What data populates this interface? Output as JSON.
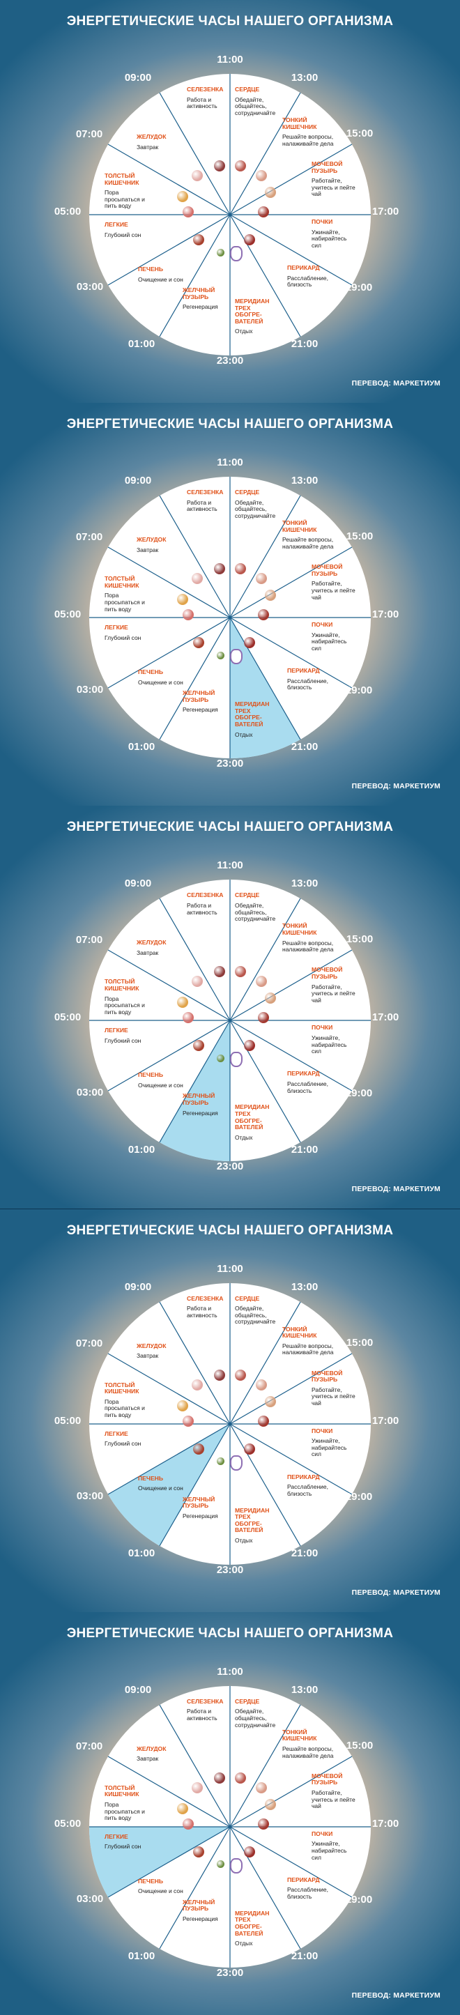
{
  "title": "ЭНЕРГЕТИЧЕСКИЕ ЧАСЫ НАШЕГО ОРГАНИЗМА",
  "credit": "ПЕРЕВОД: МАРКЕТИУМ",
  "hours": [
    "11:00",
    "13:00",
    "15:00",
    "17:00",
    "19:00",
    "21:00",
    "23:00",
    "01:00",
    "03:00",
    "05:00",
    "07:00",
    "09:00"
  ],
  "sections": [
    {
      "organ": "СЕРДЦЕ",
      "text": "Обедайте, общайтесь, сотрудничайте",
      "icon": "heart-icon",
      "color": "#b9574c"
    },
    {
      "organ": "ТОНКИЙ КИШЕЧНИК",
      "text": "Решайте вопросы, налаживайте дела",
      "icon": "small-intestine-icon",
      "color": "#d89a86"
    },
    {
      "organ": "МОЧЕВОЙ ПУЗЫРЬ",
      "text": "Работайте, учитесь и пейте чай",
      "icon": "bladder-icon",
      "color": "#d7a07c"
    },
    {
      "organ": "ПОЧКИ",
      "text": "Ужинайте, набирайтесь сил",
      "icon": "kidneys-icon",
      "color": "#a3382f"
    },
    {
      "organ": "ПЕРИКАРД",
      "text": "Расслабление, близость",
      "icon": "pericardium-icon",
      "color": "#9c2f2a"
    },
    {
      "organ": "МЕРИДИАН ТРЕХ ОБОГРЕ-ВАТЕЛЕЙ",
      "text": "Отдых",
      "icon": "triple-warmer-icon",
      "color": "#8e6fb3"
    },
    {
      "organ": "ЖЕЛЧНЫЙ ПУЗЫРЬ",
      "text": "Регенерация",
      "icon": "gallbladder-icon",
      "color": "#6b8e3e"
    },
    {
      "organ": "ПЕЧЕНЬ",
      "text": "Очищение и сон",
      "icon": "liver-icon",
      "color": "#a8412e"
    },
    {
      "organ": "ЛЕГКИЕ",
      "text": "Глубокий сон",
      "icon": "lungs-icon",
      "color": "#d46f6a"
    },
    {
      "organ": "ТОЛСТЫЙ КИШЕЧНИК",
      "text": "Пора просыпаться и пить воду",
      "icon": "large-intestine-icon",
      "color": "#e0a349"
    },
    {
      "organ": "ЖЕЛУДОК",
      "text": "Завтрак",
      "icon": "stomach-icon",
      "color": "#e1a9a4"
    },
    {
      "organ": "СЕЛЕЗЕНКА",
      "text": "Работа и активность",
      "icon": "spleen-icon",
      "color": "#8e3b3a"
    }
  ],
  "panels": [
    {
      "highlight": null
    },
    {
      "highlight": 5
    },
    {
      "highlight": 6
    },
    {
      "highlight": 7
    },
    {
      "highlight": 8
    }
  ],
  "colors": {
    "highlight": "#a9dcef",
    "line": "#1c5f8b",
    "organ_label": "#e05118",
    "hour_label": "#ffffff"
  }
}
